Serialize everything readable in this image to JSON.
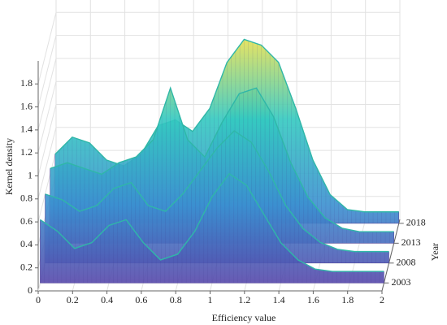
{
  "chart_data": {
    "type": "surface3d",
    "x_label": "Efficiency value",
    "y_label": "Year",
    "z_label": "Kernel density",
    "x": [
      0,
      0.1,
      0.2,
      0.3,
      0.4,
      0.5,
      0.6,
      0.7,
      0.8,
      0.9,
      1.0,
      1.1,
      1.2,
      1.3,
      1.4,
      1.5,
      1.6,
      1.7,
      1.8,
      1.9,
      2.0
    ],
    "series": [
      {
        "values": [
          0.55,
          0.45,
          0.3,
          0.35,
          0.5,
          0.55,
          0.35,
          0.2,
          0.25,
          0.45,
          0.75,
          0.95,
          0.85,
          0.6,
          0.35,
          0.2,
          0.12,
          0.1,
          0.1,
          0.1,
          0.1
        ]
      },
      {
        "values": [
          0.6,
          0.55,
          0.45,
          0.5,
          0.65,
          0.7,
          0.5,
          0.45,
          0.6,
          0.8,
          1.0,
          1.15,
          1.05,
          0.8,
          0.5,
          0.3,
          0.18,
          0.12,
          0.1,
          0.1,
          0.1
        ]
      },
      {
        "values": [
          0.65,
          0.7,
          0.65,
          0.6,
          0.7,
          0.75,
          0.9,
          1.35,
          0.9,
          0.75,
          1.05,
          1.3,
          1.35,
          1.1,
          0.7,
          0.4,
          0.22,
          0.13,
          0.1,
          0.1,
          0.1
        ]
      },
      {
        "values": [
          0.6,
          0.75,
          0.7,
          0.55,
          0.5,
          0.6,
          0.85,
          0.9,
          0.8,
          1.0,
          1.4,
          1.6,
          1.55,
          1.4,
          1.0,
          0.55,
          0.25,
          0.12,
          0.1,
          0.1,
          0.1
        ]
      }
    ],
    "xlim": [
      0,
      2
    ],
    "xticks": [
      0,
      0.2,
      0.4,
      0.6,
      0.8,
      1,
      1.2,
      1.4,
      1.6,
      1.8,
      2
    ],
    "ylim": [
      2001,
      2019
    ],
    "yticks": [
      2003,
      2008,
      2013,
      2018
    ],
    "zlim": [
      0,
      2
    ],
    "zticks": [
      0,
      0.2,
      0.4,
      0.6,
      0.8,
      1,
      1.2,
      1.4,
      1.6,
      1.8
    ],
    "colormap": [
      "#5a3fa6",
      "#3b8fd0",
      "#33c9c0",
      "#f2e24a"
    ],
    "grid": true
  }
}
